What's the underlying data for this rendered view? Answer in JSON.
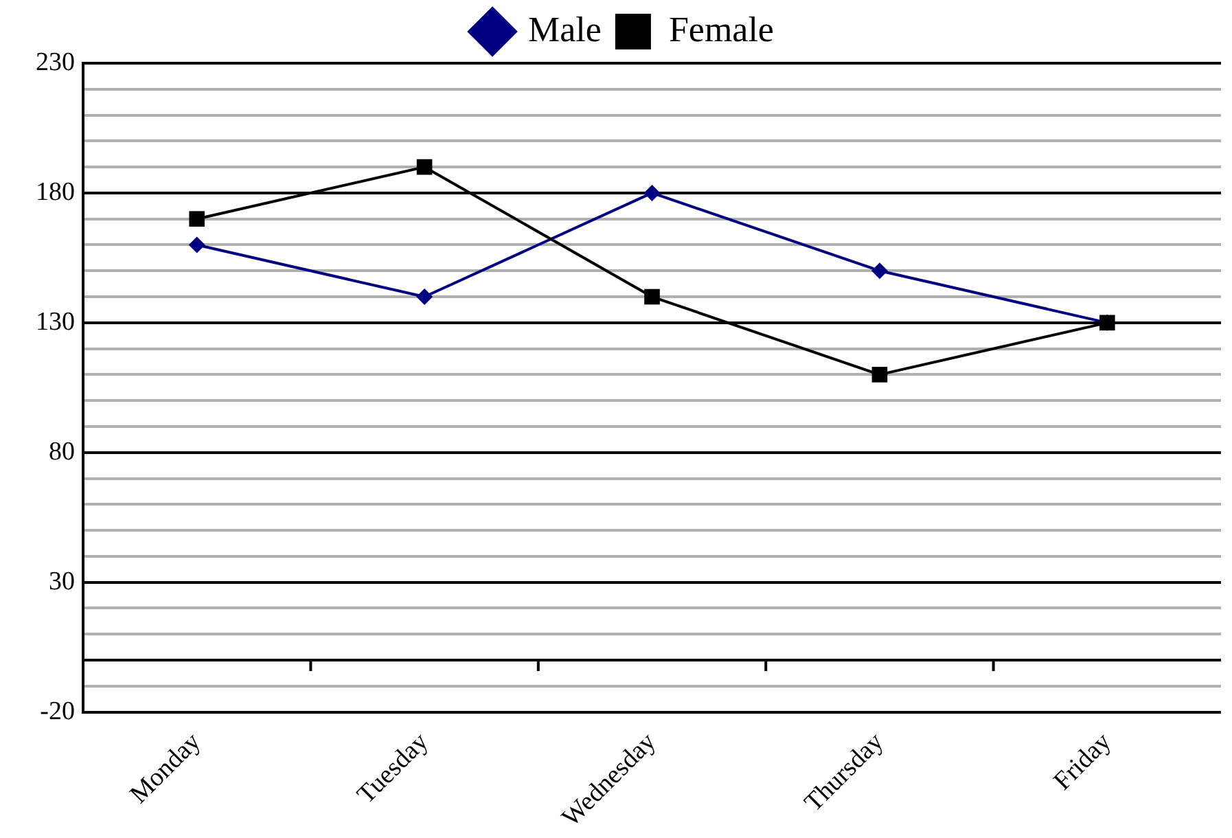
{
  "chart_data": {
    "type": "line",
    "categories": [
      "Monday",
      "Tuesday",
      "Wednesday",
      "Thursday",
      "Friday"
    ],
    "series": [
      {
        "name": "Male",
        "color": "#000080",
        "values": [
          160,
          140,
          180,
          150,
          130
        ],
        "marker": "diamond"
      },
      {
        "name": "Female",
        "color": "#000000",
        "values": [
          170,
          190,
          140,
          110,
          130
        ],
        "marker": "square"
      }
    ],
    "ylim": [
      -20,
      230
    ],
    "yticks": [
      -20,
      {
        "value": -10,
        "label": null
      },
      {
        "value": 10,
        "label": null
      },
      {
        "value": 20,
        "label": null
      },
      30,
      {
        "value": 40,
        "label": null
      },
      {
        "value": 50,
        "label": null
      },
      {
        "value": 60,
        "label": null
      },
      {
        "value": 70,
        "label": null
      },
      80,
      {
        "value": 90,
        "label": null
      },
      {
        "value": 100,
        "label": null
      },
      {
        "value": 110,
        "label": null
      },
      {
        "value": 120,
        "label": null
      },
      130,
      {
        "value": 140,
        "label": null
      },
      {
        "value": 150,
        "label": null
      },
      {
        "value": 160,
        "label": null
      },
      {
        "value": 170,
        "label": null
      },
      180,
      {
        "value": 190,
        "label": null
      },
      {
        "value": 200,
        "label": null
      },
      {
        "value": 210,
        "label": null
      },
      {
        "value": 220,
        "label": null
      },
      230
    ],
    "ref_lines": [
      {
        "axis": "y",
        "value": 0,
        "color": "#000000"
      }
    ],
    "grid": "y",
    "legend": "top",
    "line_style": "solid"
  }
}
